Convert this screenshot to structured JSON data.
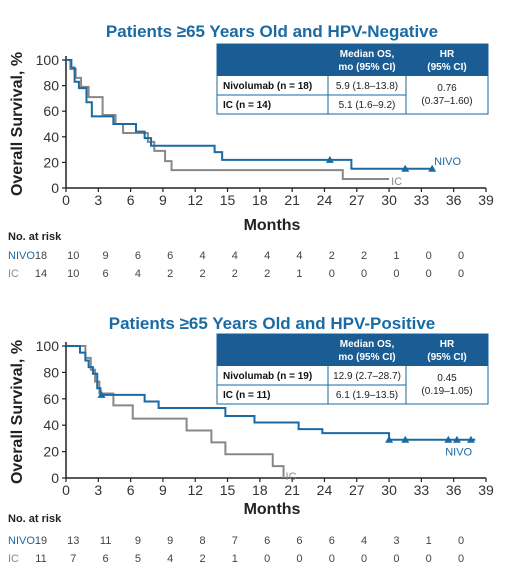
{
  "chart_data": [
    {
      "type": "line",
      "title": "Patients ≥65 Years Old and HPV-Negative",
      "xlabel": "Months",
      "ylabel": "Overall Survival, %",
      "xlim": [
        0,
        39
      ],
      "ylim": [
        0,
        100
      ],
      "xticks": [
        "0",
        "3",
        "6",
        "9",
        "12",
        "15",
        "18",
        "21",
        "24",
        "27",
        "30",
        "33",
        "36",
        "39"
      ],
      "yticks": [
        "0",
        "20",
        "40",
        "60",
        "80",
        "100"
      ],
      "series": [
        {
          "name": "NIVO",
          "color": "#1a6aa3",
          "steps": [
            [
              0,
              100
            ],
            [
              0.5,
              94
            ],
            [
              0.8,
              83
            ],
            [
              1.2,
              78
            ],
            [
              1.9,
              67
            ],
            [
              2.4,
              56
            ],
            [
              4.4,
              50
            ],
            [
              6.5,
              44
            ],
            [
              7.3,
              39
            ],
            [
              7.9,
              33
            ],
            [
              13.8,
              28
            ],
            [
              14.5,
              22
            ],
            [
              25,
              22
            ],
            [
              26.5,
              15
            ],
            [
              34,
              15
            ]
          ],
          "censored": [
            [
              24.5,
              22
            ],
            [
              31.5,
              15
            ],
            [
              34,
              15
            ]
          ]
        },
        {
          "name": "IC",
          "color": "#888888",
          "steps": [
            [
              0,
              100
            ],
            [
              0.4,
              93
            ],
            [
              0.9,
              86
            ],
            [
              1.4,
              79
            ],
            [
              2.1,
              71
            ],
            [
              3.4,
              57
            ],
            [
              4.6,
              50
            ],
            [
              5.3,
              43
            ],
            [
              7.6,
              36
            ],
            [
              8.2,
              29
            ],
            [
              9.2,
              21
            ],
            [
              9.8,
              14
            ],
            [
              25.7,
              7
            ],
            [
              30,
              7
            ]
          ],
          "censored": []
        }
      ],
      "legend_table": {
        "headers": [
          "",
          "Median OS, mo (95% CI)",
          "HR (95% CI)"
        ],
        "rows": [
          {
            "label": "Nivolumab (n = 18)",
            "median": "5.9 (1.8–13.8)"
          },
          {
            "label": "IC (n = 14)",
            "median": "5.1 (1.6–9.2)"
          }
        ],
        "hr": "0.76",
        "hr_ci": "(0.37–1.60)"
      },
      "risk_table": {
        "title": "No. at risk",
        "rows": [
          {
            "name": "NIVO",
            "values": [
              "18",
              "10",
              "9",
              "6",
              "6",
              "4",
              "4",
              "4",
              "4",
              "2",
              "2",
              "1",
              "0",
              "0"
            ]
          },
          {
            "name": "IC",
            "values": [
              "14",
              "10",
              "6",
              "4",
              "2",
              "2",
              "2",
              "2",
              "1",
              "0",
              "0",
              "0",
              "0",
              "0"
            ]
          }
        ]
      }
    },
    {
      "type": "line",
      "title": "Patients ≥65 Years Old and HPV-Positive",
      "xlabel": "Months",
      "ylabel": "Overall Survival, %",
      "xlim": [
        0,
        39
      ],
      "ylim": [
        0,
        100
      ],
      "xticks": [
        "0",
        "3",
        "6",
        "9",
        "12",
        "15",
        "18",
        "21",
        "24",
        "27",
        "30",
        "33",
        "36",
        "39"
      ],
      "yticks": [
        "0",
        "20",
        "40",
        "60",
        "80",
        "100"
      ],
      "series": [
        {
          "name": "NIVO",
          "color": "#1a6aa3",
          "steps": [
            [
              0,
              100
            ],
            [
              1.3,
              95
            ],
            [
              1.8,
              89
            ],
            [
              2.1,
              84
            ],
            [
              2.5,
              79
            ],
            [
              2.9,
              68
            ],
            [
              3.2,
              63
            ],
            [
              7.3,
              58
            ],
            [
              8.6,
              53
            ],
            [
              14.8,
              47
            ],
            [
              17.5,
              42
            ],
            [
              21.6,
              37
            ],
            [
              23.8,
              34
            ],
            [
              30,
              29
            ],
            [
              38,
              29
            ]
          ],
          "censored": [
            [
              3.3,
              63
            ],
            [
              30,
              29
            ],
            [
              31.5,
              29
            ],
            [
              35.5,
              29
            ],
            [
              36.3,
              29
            ],
            [
              37.6,
              29
            ]
          ]
        },
        {
          "name": "IC",
          "color": "#888888",
          "steps": [
            [
              0,
              100
            ],
            [
              1.8,
              91
            ],
            [
              2.3,
              82
            ],
            [
              2.7,
              73
            ],
            [
              3.1,
              64
            ],
            [
              4.4,
              55
            ],
            [
              6.2,
              45
            ],
            [
              11.2,
              36
            ],
            [
              13.5,
              27
            ],
            [
              14.8,
              18
            ],
            [
              19.2,
              9
            ],
            [
              20.2,
              0
            ]
          ],
          "censored": []
        }
      ],
      "legend_table": {
        "headers": [
          "",
          "Median OS, mo (95% CI)",
          "HR (95% CI)"
        ],
        "rows": [
          {
            "label": "Nivolumab (n = 19)",
            "median": "12.9 (2.7–28.7)"
          },
          {
            "label": "IC (n = 11)",
            "median": "6.1 (1.9–13.5)"
          }
        ],
        "hr": "0.45",
        "hr_ci": "(0.19–1.05)"
      },
      "risk_table": {
        "title": "No. at risk",
        "rows": [
          {
            "name": "NIVO",
            "values": [
              "19",
              "13",
              "11",
              "9",
              "9",
              "8",
              "7",
              "6",
              "6",
              "6",
              "4",
              "3",
              "1",
              "0"
            ]
          },
          {
            "name": "IC",
            "values": [
              "11",
              "7",
              "6",
              "5",
              "4",
              "2",
              "1",
              "0",
              "0",
              "0",
              "0",
              "0",
              "0",
              "0"
            ]
          }
        ]
      }
    }
  ]
}
